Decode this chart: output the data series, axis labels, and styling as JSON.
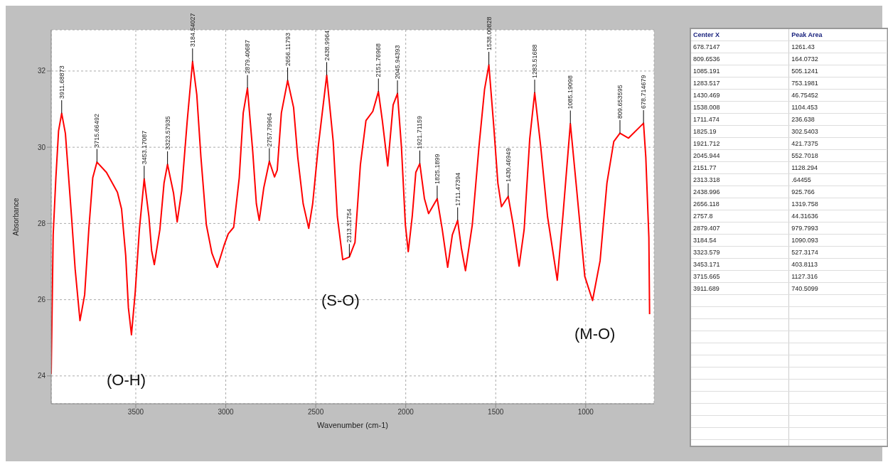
{
  "chart_data": [
    {
      "type": "line",
      "xlabel": "Wavenumber (cm-1)",
      "ylabel": "Absorbance",
      "x": [
        3970,
        3959,
        3944,
        3929,
        3911.7,
        3891,
        3857,
        3837,
        3810,
        3784,
        3761,
        3739,
        3715.7,
        3663,
        3602,
        3579,
        3556,
        3541,
        3524,
        3503,
        3480,
        3453.2,
        3427,
        3412,
        3397,
        3366,
        3343,
        3323.6,
        3290,
        3270,
        3245,
        3214,
        3184.5,
        3161,
        3138,
        3108,
        3077,
        3047,
        3009,
        2986,
        2956,
        2925,
        2903,
        2879.4,
        2850,
        2830,
        2814,
        2789,
        2757.8,
        2729,
        2714,
        2691,
        2656.1,
        2623,
        2600,
        2570,
        2539,
        2517,
        2486,
        2439,
        2403,
        2380,
        2350,
        2313.3,
        2282,
        2252,
        2221,
        2183,
        2151.8,
        2130,
        2100,
        2070,
        2045.9,
        2024,
        2002,
        1986,
        1964,
        1944,
        1921.7,
        1896,
        1873,
        1825.2,
        1797,
        1767,
        1741,
        1711.5,
        1691,
        1668,
        1630,
        1593,
        1562,
        1538,
        1511,
        1488,
        1468,
        1430.5,
        1403,
        1370,
        1342,
        1311,
        1283.5,
        1250,
        1212,
        1158,
        1127,
        1085.2,
        1051,
        1005,
        962,
        920,
        882,
        844,
        809.7,
        762,
        678.7,
        666,
        649,
        645
      ],
      "series": [
        {
          "color": "#ff0000",
          "values": [
            24.05,
            27.7,
            29.2,
            30.43,
            30.89,
            30.36,
            28.18,
            26.81,
            25.45,
            26.13,
            27.84,
            29.2,
            29.61,
            29.34,
            28.82,
            28.38,
            27.16,
            25.79,
            25.08,
            26.2,
            27.84,
            29.17,
            28.18,
            27.29,
            26.92,
            27.84,
            29.06,
            29.55,
            28.79,
            28.04,
            28.86,
            30.7,
            32.25,
            31.38,
            29.74,
            27.97,
            27.22,
            26.85,
            27.43,
            27.73,
            27.9,
            29.2,
            30.9,
            31.55,
            29.88,
            28.52,
            28.08,
            28.93,
            29.63,
            29.22,
            29.4,
            30.9,
            31.75,
            31.04,
            29.74,
            28.52,
            27.87,
            28.52,
            30.02,
            31.89,
            30.15,
            28.18,
            27.05,
            27.12,
            27.5,
            29.54,
            30.7,
            30.94,
            31.46,
            30.7,
            29.51,
            31.11,
            31.41,
            30.02,
            27.97,
            27.26,
            28.18,
            29.34,
            29.57,
            28.65,
            28.26,
            28.65,
            27.84,
            26.85,
            27.7,
            28.08,
            27.36,
            26.76,
            27.97,
            30.02,
            31.52,
            32.16,
            30.56,
            29.06,
            28.44,
            28.71,
            27.97,
            26.88,
            27.84,
            30.22,
            31.43,
            30.02,
            28.18,
            26.51,
            28.18,
            30.62,
            28.93,
            26.61,
            25.98,
            27.02,
            29.06,
            30.15,
            30.37,
            30.24,
            30.63,
            29.74,
            27.63,
            25.62
          ]
        }
      ],
      "xlim": [
        3970,
        620
      ],
      "xticks": [
        3500,
        3000,
        2500,
        2000,
        1500,
        1000
      ],
      "ylim": [
        23.27,
        33.08
      ],
      "yticks": [
        24,
        26,
        28,
        30,
        32
      ],
      "grid": true,
      "marker": "none",
      "line_style": "solid",
      "annotations": [
        {
          "text": "3911.68873",
          "x": 3911.689,
          "y": 30.89
        },
        {
          "text": "3715.66492",
          "x": 3715.665,
          "y": 29.61
        },
        {
          "text": "3453.17087",
          "x": 3453.171,
          "y": 29.17
        },
        {
          "text": "3323.57935",
          "x": 3323.579,
          "y": 29.55
        },
        {
          "text": "3184.54027",
          "x": 3184.54,
          "y": 32.25
        },
        {
          "text": "2879.40687",
          "x": 2879.407,
          "y": 31.55
        },
        {
          "text": "2757.79964",
          "x": 2757.8,
          "y": 29.63
        },
        {
          "text": "2656.11793",
          "x": 2656.118,
          "y": 31.75
        },
        {
          "text": "2438.9964",
          "x": 2438.996,
          "y": 31.89
        },
        {
          "text": "2313.31754",
          "x": 2313.318,
          "y": 27.12
        },
        {
          "text": "2151.76968",
          "x": 2151.77,
          "y": 31.46
        },
        {
          "text": "2045.94393",
          "x": 2045.944,
          "y": 31.41
        },
        {
          "text": "1921.71159",
          "x": 1921.712,
          "y": 29.57
        },
        {
          "text": "1825.1899",
          "x": 1825.19,
          "y": 28.65
        },
        {
          "text": "1711.47394",
          "x": 1711.474,
          "y": 28.08
        },
        {
          "text": "1538.00828",
          "x": 1538.008,
          "y": 32.16
        },
        {
          "text": "1430.46949",
          "x": 1430.469,
          "y": 28.71
        },
        {
          "text": "1283.51688",
          "x": 1283.517,
          "y": 31.43
        },
        {
          "text": "1085.19098",
          "x": 1085.191,
          "y": 30.62
        },
        {
          "text": "809.653595",
          "x": 809.6536,
          "y": 30.37
        },
        {
          "text": "678.714679",
          "x": 678.7147,
          "y": 30.63
        },
        "(O-H)",
        "(S-O)",
        "(M-O)"
      ]
    },
    {
      "type": "other",
      "xlabel": "Center X",
      "ylabel": "Peak Area",
      "categories": [
        "678.7147",
        "809.6536",
        "1085.191",
        "1283.517",
        "1430.469",
        "1538.008",
        "1711.474",
        "1825.19",
        "1921.712",
        "2045.944",
        "2151.77",
        "2313.318",
        "2438.996",
        "2656.118",
        "2757.8",
        "2879.407",
        "3184.54",
        "3323.579",
        "3453.171",
        "3715.665",
        "3911.689"
      ],
      "value_labels": [
        "1261.43",
        "164.0732",
        "505.1241",
        "753.1981",
        "46.75452",
        "1104.453",
        "236.638",
        "302.5403",
        "421.7375",
        "552.7018",
        "1128.294",
        ".64455",
        "925.766",
        "1319.758",
        "44.31636",
        "979.7993",
        "1090.093",
        "527.3174",
        "403.8113",
        "1127.316",
        "740.5099"
      ]
    }
  ]
}
